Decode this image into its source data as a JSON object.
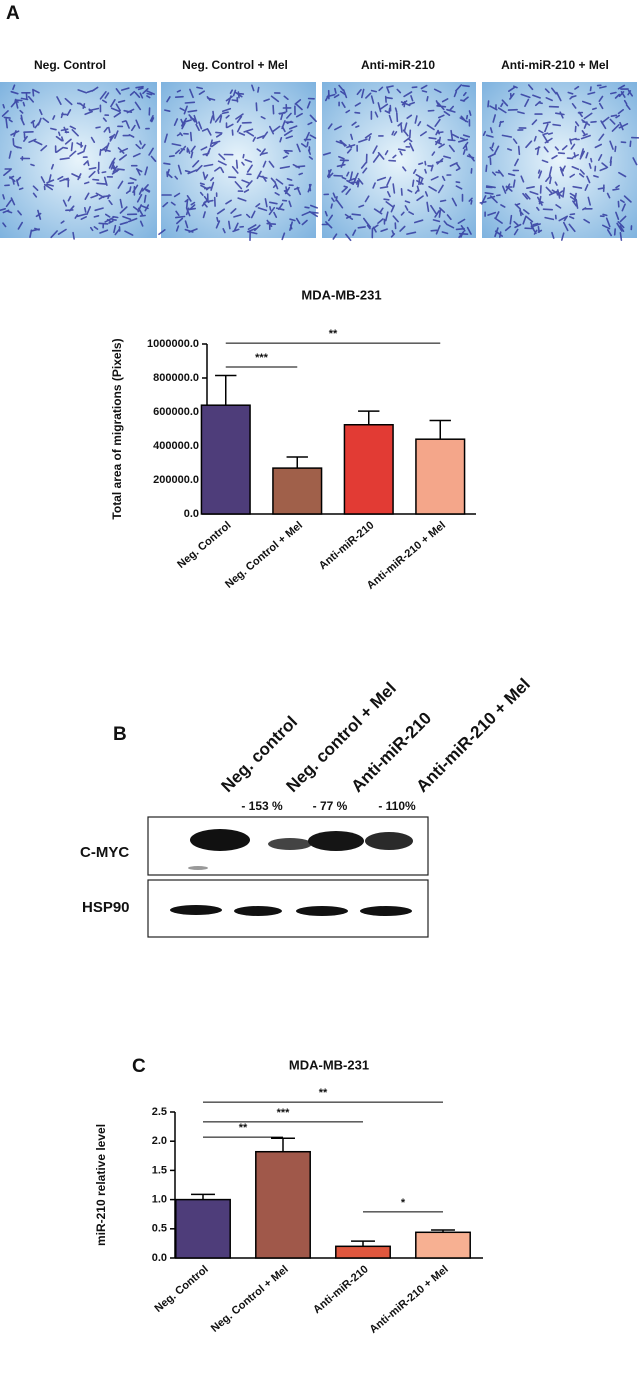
{
  "panel_a": {
    "label": "A",
    "conditions": [
      "Neg. Control",
      "Neg. Control  + Mel",
      "Anti-miR-210",
      "Anti-miR-210  + Mel"
    ]
  },
  "panel_b": {
    "label": "B",
    "lanes": [
      "Neg. control",
      "Neg. control + Mel",
      "Anti-miR-210",
      "Anti-miR-210 + Mel"
    ],
    "changes": [
      "- 153 %",
      "- 77 %",
      "- 110%"
    ],
    "proteins": [
      "C-MYC",
      "HSP90"
    ]
  },
  "panel_c": {
    "label": "C"
  },
  "chart_data": [
    {
      "type": "bar",
      "title": "MDA-MB-231",
      "y_label": "Total area of migrations (Pixels)",
      "categories": [
        "Neg. Control",
        "Neg. Control + Mel",
        "Anti-miR-210",
        "Anti-miR-210 + Mel"
      ],
      "values": [
        640000,
        270000,
        525000,
        440000
      ],
      "errors": [
        175000,
        65000,
        80000,
        110000
      ],
      "colors": [
        "#4e3d7a",
        "#a0604a",
        "#e23b34",
        "#f4a68a"
      ],
      "ylim": [
        0,
        1000000
      ],
      "yticks": [
        {
          "value": 0,
          "label": "0.0"
        },
        {
          "value": 200000,
          "label": "200000.0"
        },
        {
          "value": 400000,
          "label": "400000.0"
        },
        {
          "value": 600000,
          "label": "600000.0"
        },
        {
          "value": 800000,
          "label": "800000.0"
        },
        {
          "value": 1000000,
          "label": "1000000.0"
        }
      ],
      "annotations": [
        {
          "text": "***",
          "from": 0,
          "to": 1,
          "y": 865000
        },
        {
          "text": "**",
          "from": 0,
          "to": 3,
          "y": 1005000
        }
      ]
    },
    {
      "type": "bar",
      "title": "MDA-MB-231",
      "y_label": "miR-210 relative level",
      "categories": [
        "Neg. Control",
        "Neg. Control + Mel",
        "Anti-miR-210",
        "Anti-miR-210 + Mel"
      ],
      "values": [
        1.0,
        1.82,
        0.2,
        0.44
      ],
      "errors": [
        0.09,
        0.23,
        0.09,
        0.04
      ],
      "colors": [
        "#4e3d7a",
        "#a0584a",
        "#e0573e",
        "#f7b092"
      ],
      "ylim": [
        0,
        2.5
      ],
      "yticks": [
        {
          "value": 0,
          "label": "0.0"
        },
        0.5,
        {
          "value": 1,
          "label": "1.0"
        },
        1.5,
        {
          "value": 2,
          "label": "2.0"
        },
        2.5
      ],
      "annotations": [
        {
          "text": "**",
          "from": 0,
          "to": 1,
          "y": 2.07
        },
        {
          "text": "***",
          "from": 0,
          "to": 2,
          "y": 2.33
        },
        {
          "text": "**",
          "from": 0,
          "to": 3,
          "y": 2.67
        },
        {
          "text": "*",
          "from": 2,
          "to": 3,
          "y": 0.79
        }
      ]
    }
  ]
}
